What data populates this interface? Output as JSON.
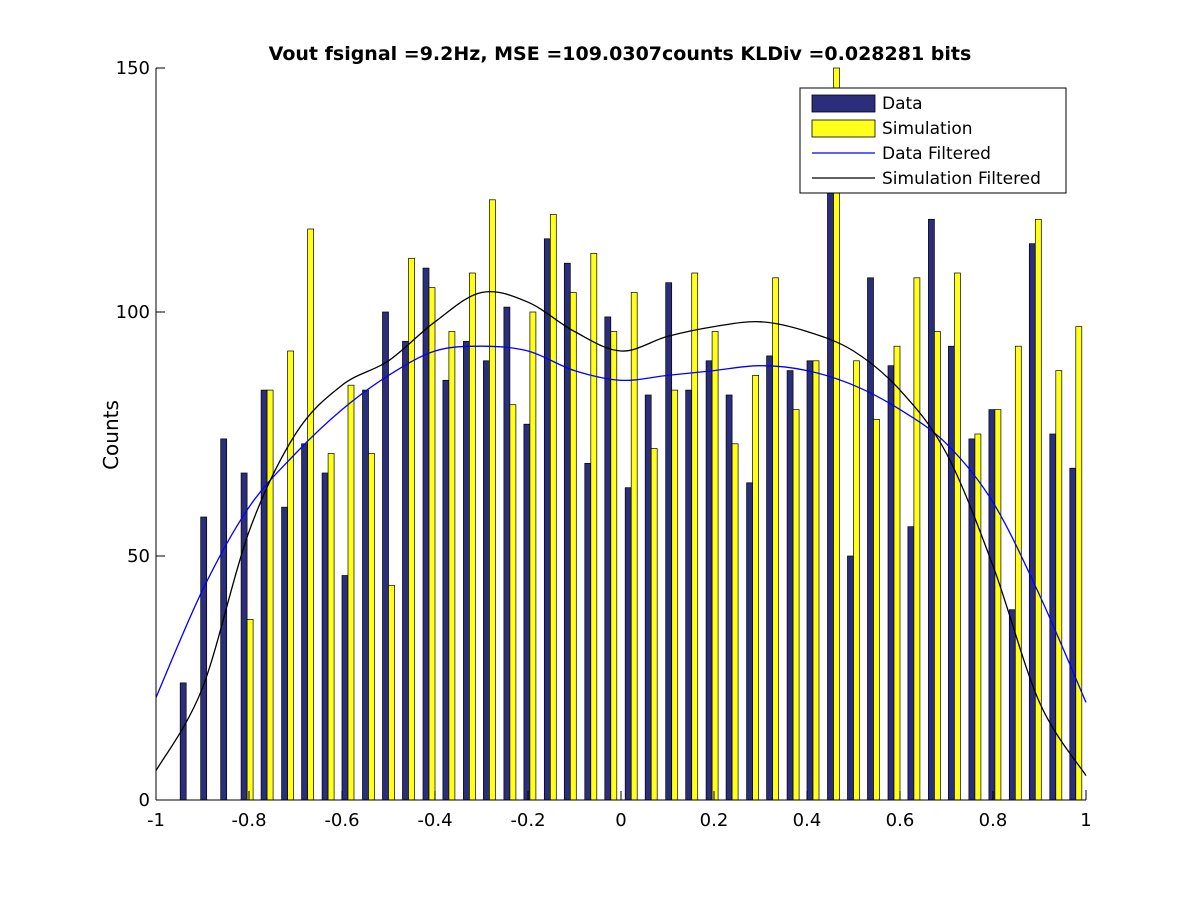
{
  "chart_data": {
    "type": "bar",
    "title": "Vout fsignal =9.2Hz, MSE =109.0307counts KLDiv =0.028281 bits",
    "xlabel": "",
    "ylabel": "Counts",
    "xlim": [
      -1,
      1
    ],
    "ylim": [
      0,
      150
    ],
    "xticks": [
      "-1",
      "-0.8",
      "-0.6",
      "-0.4",
      "-0.2",
      "0",
      "0.2",
      "0.4",
      "0.6",
      "0.8",
      "1"
    ],
    "yticks": [
      "0",
      "50",
      "100",
      "150"
    ],
    "legend_position": "top-right",
    "colors": {
      "data_bar": "#2b2e7a",
      "simulation_bar": "#ffff1a",
      "data_filtered": "#0000ff",
      "simulation_filtered": "#000000"
    },
    "series": [
      {
        "name": "Data",
        "kind": "bar",
        "x": [
          -0.935,
          -0.891,
          -0.848,
          -0.804,
          -0.761,
          -0.717,
          -0.674,
          -0.63,
          -0.587,
          -0.543,
          -0.5,
          -0.457,
          -0.413,
          -0.37,
          -0.326,
          -0.283,
          -0.239,
          -0.196,
          -0.152,
          -0.109,
          -0.065,
          -0.022,
          0.022,
          0.065,
          0.109,
          0.152,
          0.196,
          0.239,
          0.283,
          0.326,
          0.37,
          0.413,
          0.457,
          0.5,
          0.543,
          0.587,
          0.63,
          0.674,
          0.717,
          0.761,
          0.804,
          0.848,
          0.891,
          0.935,
          0.978
        ],
        "values": [
          24,
          58,
          74,
          67,
          84,
          60,
          73,
          67,
          46,
          84,
          100,
          94,
          109,
          86,
          94,
          90,
          101,
          77,
          115,
          110,
          69,
          99,
          64,
          83,
          106,
          84,
          90,
          83,
          65,
          91,
          88,
          90,
          134,
          50,
          107,
          89,
          56,
          119,
          93,
          74,
          80,
          39,
          114,
          75,
          68
        ]
      },
      {
        "name": "Simulation",
        "kind": "bar",
        "x": [
          -0.935,
          -0.891,
          -0.848,
          -0.804,
          -0.761,
          -0.717,
          -0.674,
          -0.63,
          -0.587,
          -0.543,
          -0.5,
          -0.457,
          -0.413,
          -0.37,
          -0.326,
          -0.283,
          -0.239,
          -0.196,
          -0.152,
          -0.109,
          -0.065,
          -0.022,
          0.022,
          0.065,
          0.109,
          0.152,
          0.196,
          0.239,
          0.283,
          0.326,
          0.37,
          0.413,
          0.457,
          0.5,
          0.543,
          0.587,
          0.63,
          0.674,
          0.717,
          0.761,
          0.804,
          0.848,
          0.891,
          0.935,
          0.978
        ],
        "values": [
          0,
          0,
          0,
          37,
          84,
          92,
          117,
          71,
          85,
          71,
          44,
          111,
          105,
          96,
          108,
          123,
          81,
          100,
          120,
          104,
          112,
          96,
          104,
          72,
          84,
          108,
          96,
          73,
          87,
          107,
          80,
          90,
          150,
          90,
          78,
          93,
          107,
          96,
          108,
          75,
          80,
          93,
          119,
          88,
          97
        ]
      },
      {
        "name": "Data Filtered",
        "kind": "line",
        "x": [
          -1,
          -0.9,
          -0.8,
          -0.7,
          -0.6,
          -0.5,
          -0.4,
          -0.3,
          -0.2,
          -0.1,
          0,
          0.1,
          0.2,
          0.3,
          0.4,
          0.5,
          0.6,
          0.7,
          0.8,
          0.9,
          1
        ],
        "values": [
          21,
          43,
          60,
          71,
          80,
          87,
          92,
          93,
          92,
          88,
          86,
          87,
          88,
          89,
          88,
          85,
          80,
          73,
          61,
          42,
          20
        ]
      },
      {
        "name": "Simulation Filtered",
        "kind": "line",
        "x": [
          -1,
          -0.9,
          -0.8,
          -0.7,
          -0.6,
          -0.5,
          -0.4,
          -0.3,
          -0.2,
          -0.1,
          0,
          0.1,
          0.2,
          0.3,
          0.4,
          0.5,
          0.6,
          0.7,
          0.8,
          0.9,
          1
        ],
        "values": [
          6,
          23,
          55,
          75,
          85,
          90,
          98,
          104,
          102,
          96,
          92,
          95,
          97,
          98,
          96,
          92,
          84,
          71,
          48,
          20,
          5
        ]
      }
    ]
  }
}
